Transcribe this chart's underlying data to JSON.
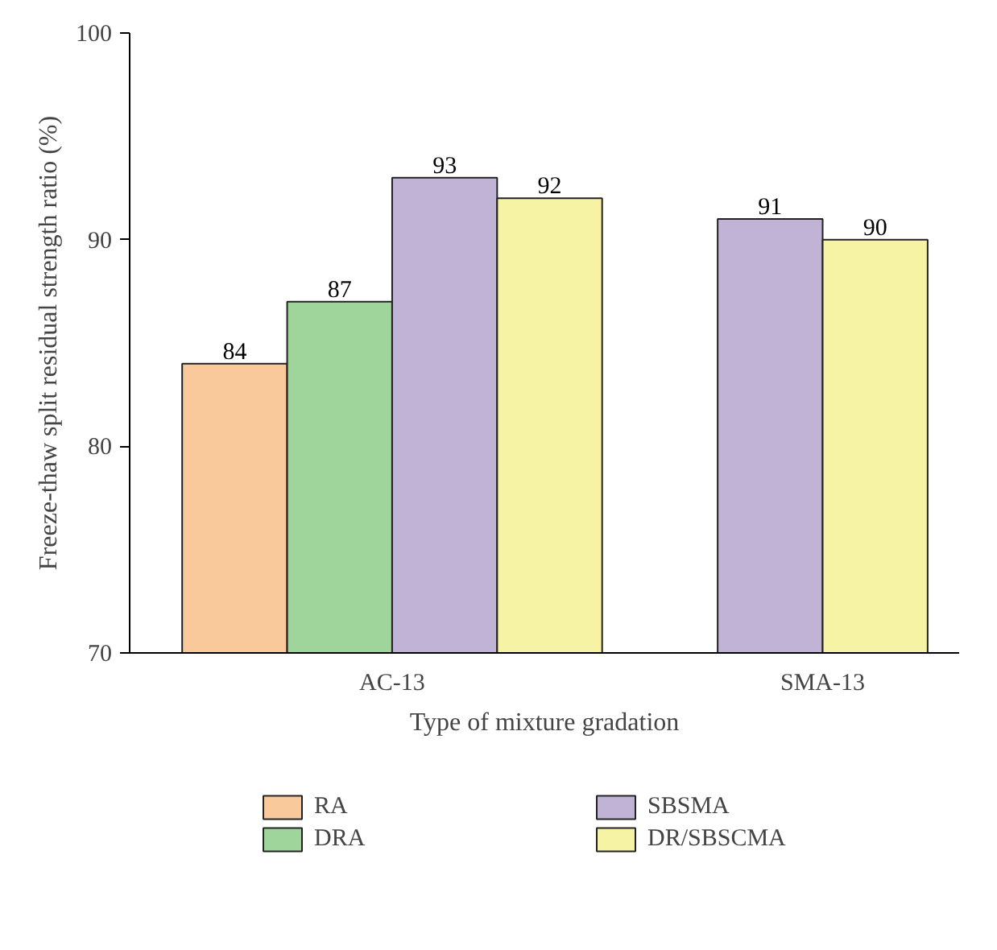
{
  "chart_data": {
    "type": "bar",
    "xlabel": "Type of mixture gradation",
    "ylabel": "Freeze-thaw split residual strength ratio (%)",
    "categories": [
      "AC-13",
      "SMA-13"
    ],
    "series": [
      {
        "name": "RA",
        "color": "#f9c89b",
        "values": [
          84,
          null
        ]
      },
      {
        "name": "DRA",
        "color": "#9fd49b",
        "values": [
          87,
          null
        ]
      },
      {
        "name": "SBSMA",
        "color": "#c1b3d6",
        "values": [
          93,
          91
        ]
      },
      {
        "name": "DR/SBSCMA",
        "color": "#f7f3a5",
        "values": [
          92,
          90
        ]
      }
    ],
    "ylim": [
      70,
      100
    ],
    "yticks": [
      70,
      80,
      90,
      100
    ],
    "grid": false,
    "legend": "bottom",
    "data_labels": true
  }
}
